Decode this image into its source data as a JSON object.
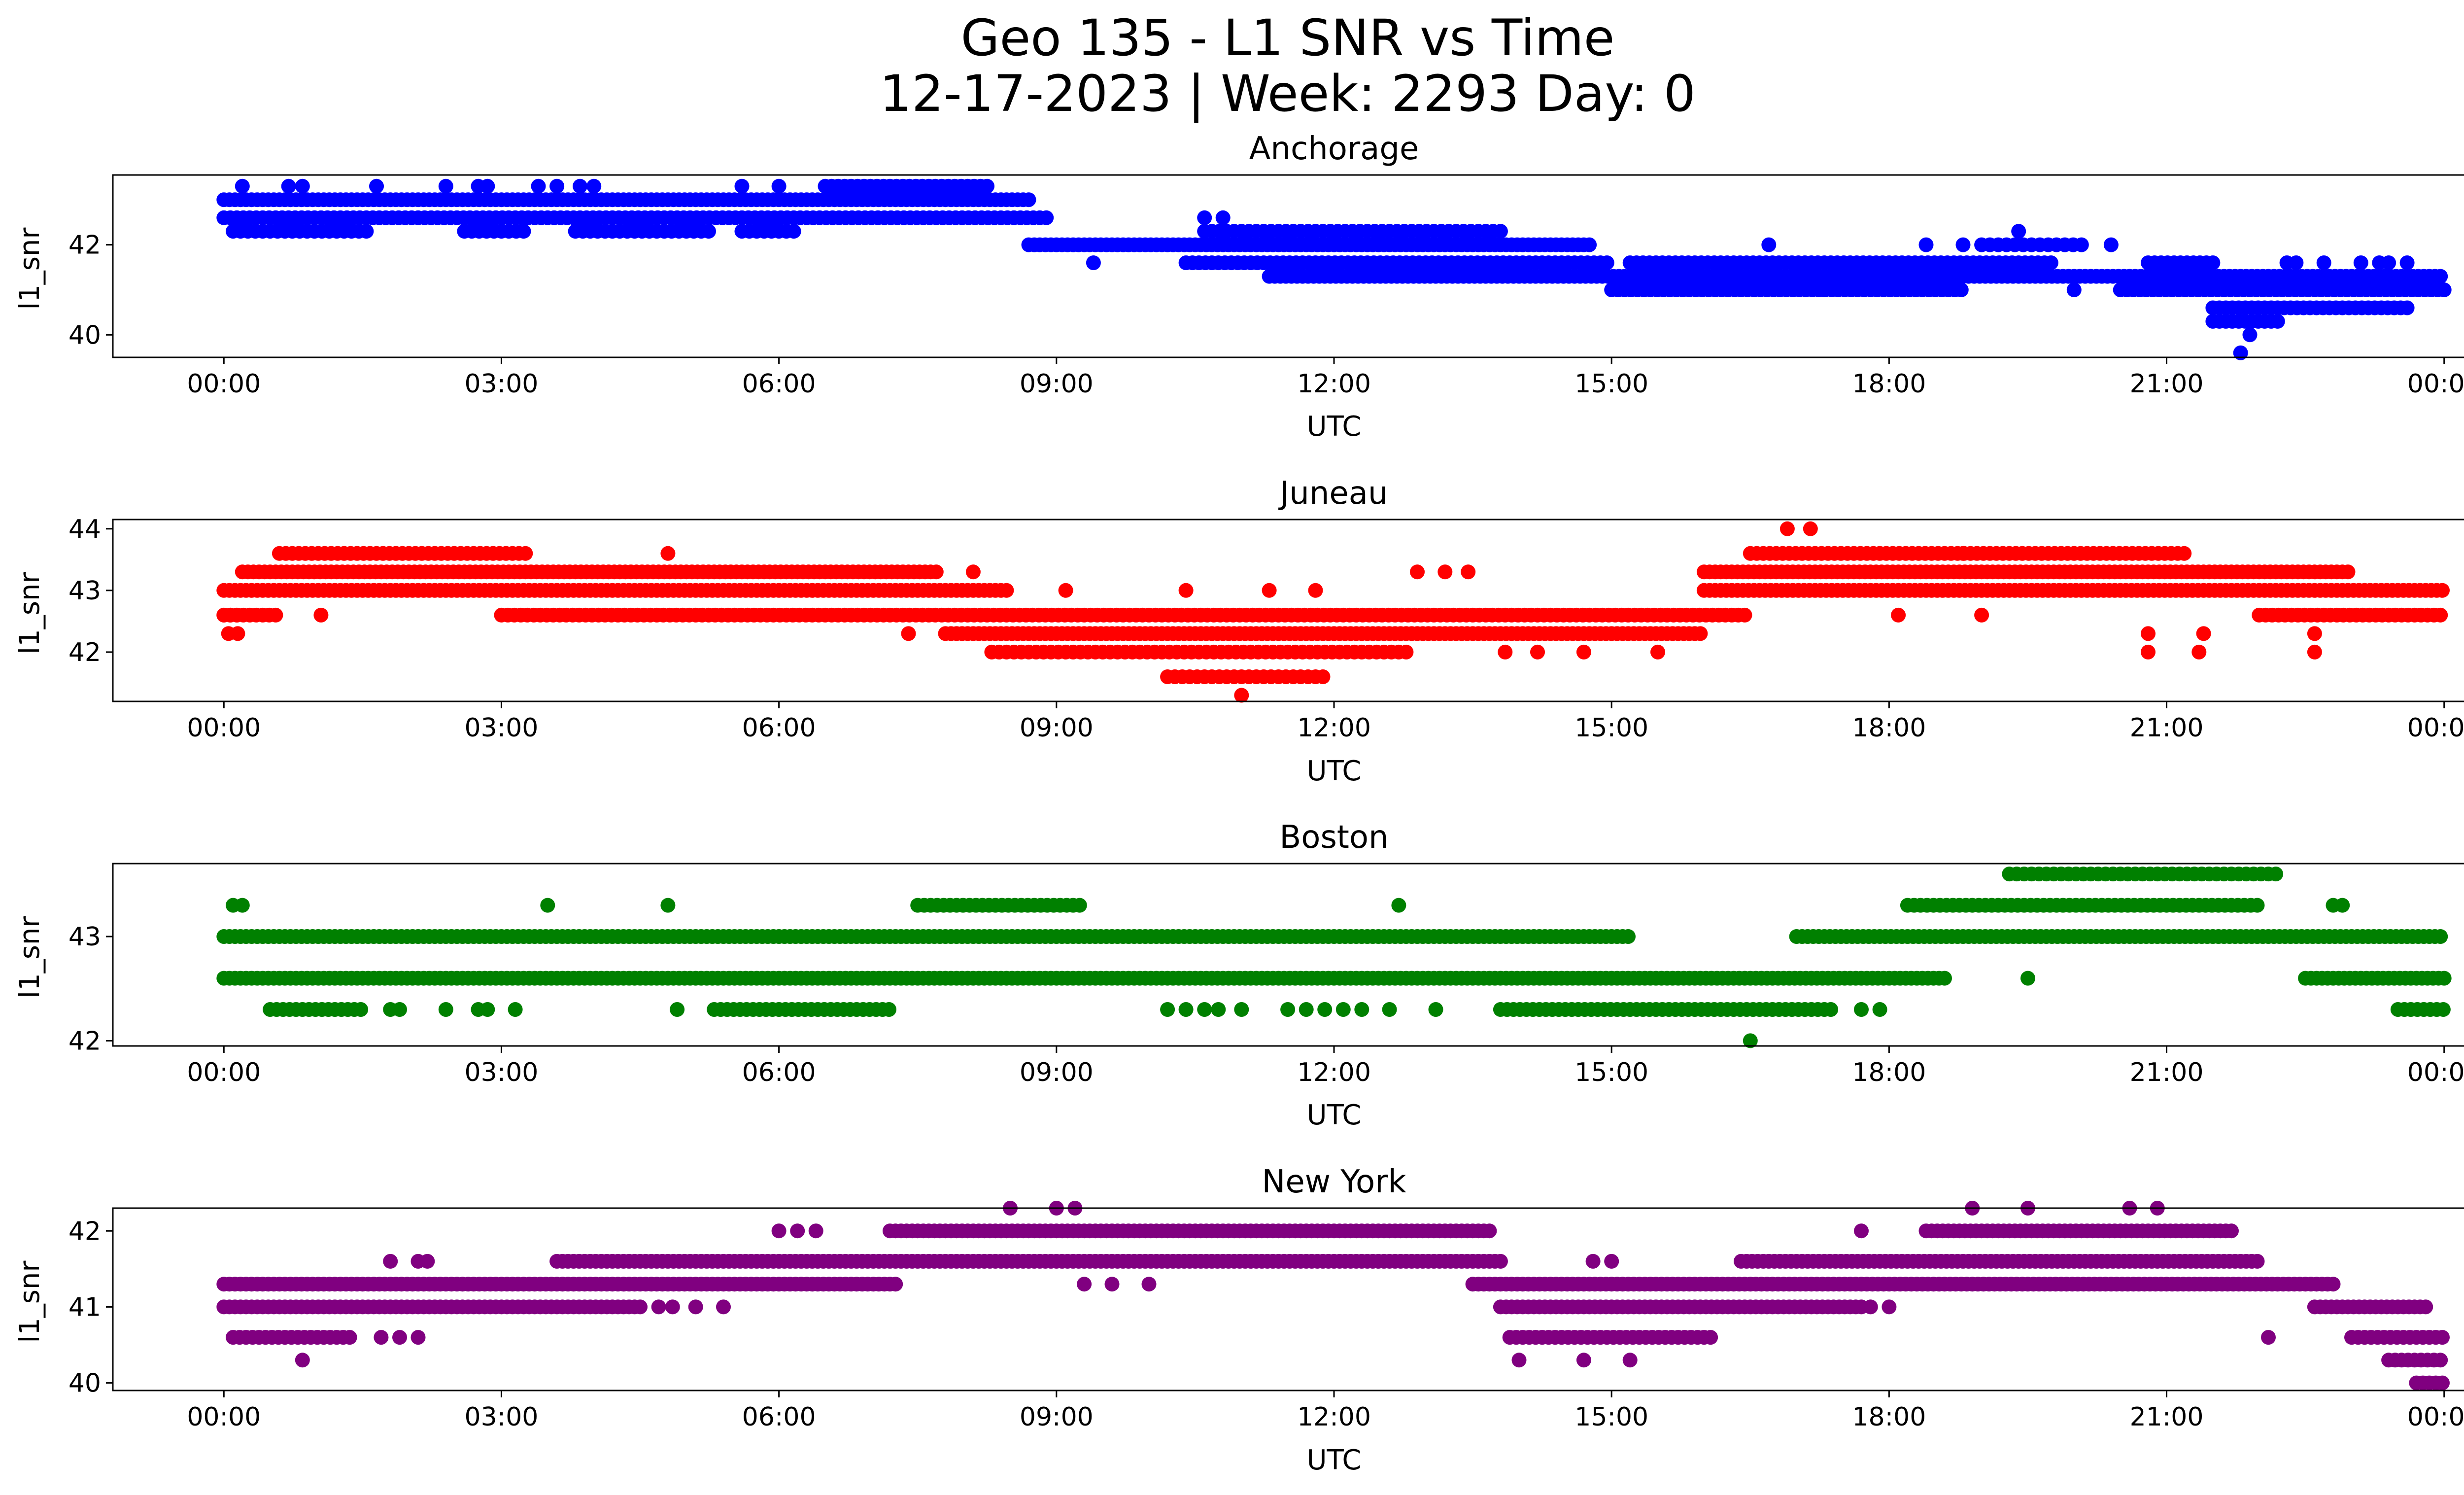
{
  "figure": {
    "title_line1": "Geo 135 - L1 SNR vs Time",
    "title_line2": "12-17-2023 | Week: 2293 Day: 0"
  },
  "chart_data": [
    {
      "type": "scatter",
      "title": "Anchorage",
      "xlabel": "UTC",
      "ylabel": "l1_snr",
      "color": "#0000ff",
      "xlim_hours": [
        -1.2,
        25.2
      ],
      "ylim": [
        39.5,
        43.55
      ],
      "x_ticks": [
        0,
        3,
        6,
        9,
        12,
        15,
        18,
        21,
        24
      ],
      "x_tick_labels": [
        "00:00",
        "03:00",
        "06:00",
        "09:00",
        "12:00",
        "15:00",
        "18:00",
        "21:00",
        "00:00"
      ],
      "y_ticks": [
        40,
        42
      ],
      "y_tick_labels": [
        "40",
        "42"
      ],
      "bands": [
        {
          "y": 43.0,
          "ranges": [
            [
              0,
              8.7
            ]
          ],
          "step": 0.06
        },
        {
          "y": 42.6,
          "ranges": [
            [
              0,
              8.9
            ]
          ],
          "step": 0.07
        },
        {
          "y": 42.3,
          "ranges": [
            [
              0.1,
              1.6
            ],
            [
              2.6,
              3.3
            ],
            [
              3.8,
              5.3
            ],
            [
              5.6,
              6.2
            ]
          ],
          "step": 0.08
        },
        {
          "y": 43.3,
          "ranges": [
            [
              6.5,
              8.3
            ]
          ],
          "step": 0.07
        },
        {
          "y": 42.0,
          "ranges": [
            [
              8.7,
              14.8
            ]
          ],
          "step": 0.06
        },
        {
          "y": 41.6,
          "ranges": [
            [
              10.4,
              15.0
            ]
          ],
          "step": 0.07
        },
        {
          "y": 42.3,
          "ranges": [
            [
              10.6,
              13.8
            ]
          ],
          "step": 0.08
        },
        {
          "y": 41.3,
          "ranges": [
            [
              11.3,
              24.0
            ]
          ],
          "step": 0.06
        },
        {
          "y": 41.0,
          "ranges": [
            [
              15.0,
              18.8
            ],
            [
              20.5,
              24.0
            ]
          ],
          "step": 0.07
        },
        {
          "y": 41.6,
          "ranges": [
            [
              15.2,
              19.8
            ],
            [
              20.8,
              21.5
            ]
          ],
          "step": 0.07
        },
        {
          "y": 42.0,
          "ranges": [
            [
              19.0,
              20.1
            ]
          ],
          "step": 0.09
        },
        {
          "y": 40.6,
          "ranges": [
            [
              21.5,
              23.6
            ]
          ],
          "step": 0.07
        },
        {
          "y": 40.3,
          "ranges": [
            [
              21.5,
              22.2
            ]
          ],
          "step": 0.07
        }
      ],
      "points": [
        [
          0.2,
          43.3
        ],
        [
          0.7,
          43.3
        ],
        [
          0.85,
          43.3
        ],
        [
          1.65,
          43.3
        ],
        [
          2.4,
          43.3
        ],
        [
          2.75,
          43.3
        ],
        [
          2.85,
          43.3
        ],
        [
          3.4,
          43.3
        ],
        [
          3.6,
          43.3
        ],
        [
          3.85,
          43.3
        ],
        [
          4.0,
          43.3
        ],
        [
          5.6,
          43.3
        ],
        [
          6.0,
          43.3
        ],
        [
          9.4,
          41.6
        ],
        [
          10.6,
          42.6
        ],
        [
          10.8,
          42.6
        ],
        [
          16.7,
          42.0
        ],
        [
          18.4,
          42.0
        ],
        [
          18.8,
          42.0
        ],
        [
          19.4,
          42.3
        ],
        [
          20.4,
          42.0
        ],
        [
          22.4,
          41.6
        ],
        [
          22.7,
          41.6
        ],
        [
          23.3,
          41.6
        ],
        [
          23.6,
          41.6
        ],
        [
          21.8,
          39.6
        ],
        [
          21.9,
          40.0
        ],
        [
          22.3,
          41.6
        ],
        [
          23.1,
          41.6
        ],
        [
          23.4,
          41.6
        ],
        [
          17.3,
          41.0
        ],
        [
          20.0,
          41.0
        ]
      ]
    },
    {
      "type": "scatter",
      "title": "Juneau",
      "xlabel": "UTC",
      "ylabel": "l1_snr",
      "color": "#ff0000",
      "xlim_hours": [
        -1.2,
        25.2
      ],
      "ylim": [
        41.2,
        44.15
      ],
      "x_ticks": [
        0,
        3,
        6,
        9,
        12,
        15,
        18,
        21,
        24
      ],
      "x_tick_labels": [
        "00:00",
        "03:00",
        "06:00",
        "09:00",
        "12:00",
        "15:00",
        "18:00",
        "21:00",
        "00:00"
      ],
      "y_ticks": [
        42,
        43,
        44
      ],
      "y_tick_labels": [
        "42",
        "43",
        "44"
      ],
      "bands": [
        {
          "y": 43.0,
          "ranges": [
            [
              0,
              8.5
            ],
            [
              16.0,
              24.0
            ]
          ],
          "step": 0.06
        },
        {
          "y": 42.6,
          "ranges": [
            [
              0,
              0.15
            ],
            [
              3.0,
              16.5
            ],
            [
              22.0,
              24.0
            ]
          ],
          "step": 0.07
        },
        {
          "y": 43.3,
          "ranges": [
            [
              0.2,
              7.7
            ],
            [
              16.0,
              23.0
            ]
          ],
          "step": 0.06
        },
        {
          "y": 43.6,
          "ranges": [
            [
              0.6,
              3.3
            ],
            [
              16.5,
              21.2
            ]
          ],
          "step": 0.07
        },
        {
          "y": 42.3,
          "ranges": [
            [
              7.8,
              16.0
            ]
          ],
          "step": 0.06
        },
        {
          "y": 42.0,
          "ranges": [
            [
              8.3,
              12.8
            ]
          ],
          "step": 0.08
        },
        {
          "y": 41.6,
          "ranges": [
            [
              10.2,
              11.9
            ]
          ],
          "step": 0.08
        },
        {
          "y": 42.6,
          "ranges": [
            [
              0,
              0.6
            ]
          ],
          "step": 0.07
        }
      ],
      "points": [
        [
          0.05,
          42.3
        ],
        [
          0.15,
          42.3
        ],
        [
          1.05,
          42.6
        ],
        [
          4.8,
          43.6
        ],
        [
          8.1,
          43.3
        ],
        [
          7.4,
          42.3
        ],
        [
          9.1,
          43.0
        ],
        [
          11.0,
          41.3
        ],
        [
          16.9,
          44.0
        ],
        [
          17.15,
          44.0
        ],
        [
          12.9,
          43.3
        ],
        [
          13.2,
          43.3
        ],
        [
          13.45,
          43.3
        ],
        [
          13.85,
          42.0
        ],
        [
          14.2,
          42.0
        ],
        [
          14.7,
          42.0
        ],
        [
          15.5,
          42.0
        ],
        [
          18.1,
          42.6
        ],
        [
          19.0,
          42.6
        ],
        [
          20.8,
          42.0
        ],
        [
          20.8,
          42.3
        ],
        [
          21.35,
          42.0
        ],
        [
          21.4,
          42.3
        ],
        [
          22.6,
          42.0
        ],
        [
          22.6,
          42.3
        ],
        [
          18.8,
          43.6
        ],
        [
          10.4,
          43.0
        ],
        [
          11.3,
          43.0
        ],
        [
          11.8,
          43.0
        ]
      ]
    },
    {
      "type": "scatter",
      "title": "Boston",
      "xlabel": "UTC",
      "ylabel": "l1_snr",
      "color": "#008000",
      "xlim_hours": [
        -1.2,
        25.2
      ],
      "ylim": [
        41.95,
        43.7
      ],
      "x_ticks": [
        0,
        3,
        6,
        9,
        12,
        15,
        18,
        21,
        24
      ],
      "x_tick_labels": [
        "00:00",
        "03:00",
        "06:00",
        "09:00",
        "12:00",
        "15:00",
        "18:00",
        "21:00",
        "00:00"
      ],
      "y_ticks": [
        42,
        43
      ],
      "y_tick_labels": [
        "42",
        "43"
      ],
      "bands": [
        {
          "y": 42.6,
          "ranges": [
            [
              0,
              18.6
            ],
            [
              22.5,
              24.0
            ]
          ],
          "step": 0.06
        },
        {
          "y": 43.0,
          "ranges": [
            [
              0,
              15.2
            ],
            [
              17.0,
              24.0
            ]
          ],
          "step": 0.06
        },
        {
          "y": 42.3,
          "ranges": [
            [
              0.5,
              1.5
            ],
            [
              5.3,
              7.2
            ],
            [
              13.8,
              17.4
            ],
            [
              23.5,
              24.0
            ]
          ],
          "step": 0.07
        },
        {
          "y": 43.3,
          "ranges": [
            [
              7.5,
              9.3
            ],
            [
              18.2,
              22.0
            ]
          ],
          "step": 0.07
        },
        {
          "y": 43.6,
          "ranges": [
            [
              19.3,
              22.2
            ]
          ],
          "step": 0.08
        }
      ],
      "points": [
        [
          0.1,
          43.3
        ],
        [
          0.2,
          43.3
        ],
        [
          3.5,
          43.3
        ],
        [
          4.8,
          43.3
        ],
        [
          4.9,
          42.3
        ],
        [
          1.8,
          42.3
        ],
        [
          1.9,
          42.3
        ],
        [
          2.4,
          42.3
        ],
        [
          2.75,
          42.3
        ],
        [
          2.85,
          42.3
        ],
        [
          3.15,
          42.3
        ],
        [
          10.2,
          42.3
        ],
        [
          10.4,
          42.3
        ],
        [
          10.6,
          42.3
        ],
        [
          10.75,
          42.3
        ],
        [
          11.0,
          42.3
        ],
        [
          11.5,
          42.3
        ],
        [
          11.7,
          42.3
        ],
        [
          11.9,
          42.3
        ],
        [
          12.1,
          42.3
        ],
        [
          12.3,
          42.3
        ],
        [
          12.6,
          42.3
        ],
        [
          13.1,
          42.3
        ],
        [
          12.7,
          43.3
        ],
        [
          16.5,
          42.0
        ],
        [
          17.7,
          42.3
        ],
        [
          17.9,
          42.3
        ],
        [
          19.5,
          42.6
        ],
        [
          22.8,
          43.3
        ],
        [
          22.9,
          43.3
        ]
      ]
    },
    {
      "type": "scatter",
      "title": "New York",
      "xlabel": "UTC",
      "ylabel": "l1_snr",
      "color": "#800080",
      "xlim_hours": [
        -1.2,
        25.2
      ],
      "ylim": [
        39.9,
        42.3
      ],
      "x_ticks": [
        0,
        3,
        6,
        9,
        12,
        15,
        18,
        21,
        24
      ],
      "x_tick_labels": [
        "00:00",
        "03:00",
        "06:00",
        "09:00",
        "12:00",
        "15:00",
        "18:00",
        "21:00",
        "00:00"
      ],
      "y_ticks": [
        40,
        41,
        42
      ],
      "y_tick_labels": [
        "40",
        "41",
        "42"
      ],
      "bands": [
        {
          "y": 41.3,
          "ranges": [
            [
              0,
              7.3
            ],
            [
              13.5,
              22.8
            ]
          ],
          "step": 0.06
        },
        {
          "y": 41.0,
          "ranges": [
            [
              0,
              4.5
            ],
            [
              13.8,
              17.7
            ],
            [
              22.6,
              23.8
            ]
          ],
          "step": 0.06
        },
        {
          "y": 40.6,
          "ranges": [
            [
              0.1,
              1.4
            ],
            [
              13.9,
              16.1
            ],
            [
              23.0,
              24.0
            ]
          ],
          "step": 0.07
        },
        {
          "y": 41.6,
          "ranges": [
            [
              3.6,
              13.8
            ],
            [
              16.4,
              22.0
            ]
          ],
          "step": 0.06
        },
        {
          "y": 42.0,
          "ranges": [
            [
              7.2,
              13.7
            ],
            [
              18.4,
              21.7
            ]
          ],
          "step": 0.06
        },
        {
          "y": 40.3,
          "ranges": [
            [
              23.4,
              24.0
            ]
          ],
          "step": 0.07
        },
        {
          "y": 40.0,
          "ranges": [
            [
              23.7,
              24.0
            ]
          ],
          "step": 0.07
        }
      ],
      "points": [
        [
          0.85,
          40.3
        ],
        [
          1.8,
          41.6
        ],
        [
          2.1,
          41.6
        ],
        [
          2.2,
          41.6
        ],
        [
          1.7,
          40.6
        ],
        [
          1.9,
          40.6
        ],
        [
          2.1,
          40.6
        ],
        [
          4.7,
          41.0
        ],
        [
          4.85,
          41.0
        ],
        [
          5.1,
          41.0
        ],
        [
          5.4,
          41.0
        ],
        [
          6.0,
          42.0
        ],
        [
          6.2,
          42.0
        ],
        [
          6.4,
          42.0
        ],
        [
          8.5,
          42.3
        ],
        [
          9.0,
          42.3
        ],
        [
          9.2,
          42.3
        ],
        [
          9.3,
          41.3
        ],
        [
          9.6,
          41.3
        ],
        [
          10.0,
          41.3
        ],
        [
          14.0,
          40.3
        ],
        [
          14.7,
          40.3
        ],
        [
          15.2,
          40.3
        ],
        [
          14.8,
          41.6
        ],
        [
          15.0,
          41.6
        ],
        [
          17.7,
          42.0
        ],
        [
          17.8,
          41.0
        ],
        [
          18.0,
          41.0
        ],
        [
          18.9,
          42.3
        ],
        [
          19.5,
          42.3
        ],
        [
          20.6,
          42.3
        ],
        [
          20.9,
          42.3
        ],
        [
          22.1,
          40.6
        ]
      ]
    }
  ]
}
